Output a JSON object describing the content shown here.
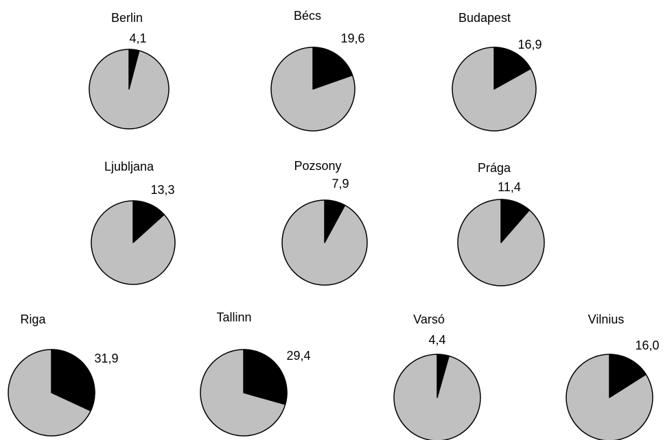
{
  "chart_data": [
    {
      "type": "pie",
      "title": "Berlin",
      "value_label": "4,1",
      "values": [
        4.1,
        95.9
      ],
      "colors": [
        "#000000",
        "#c0c0c0"
      ]
    },
    {
      "type": "pie",
      "title": "Bécs",
      "value_label": "19,6",
      "values": [
        19.6,
        80.4
      ],
      "colors": [
        "#000000",
        "#c0c0c0"
      ]
    },
    {
      "type": "pie",
      "title": "Budapest",
      "value_label": "16,9",
      "values": [
        16.9,
        83.1
      ],
      "colors": [
        "#000000",
        "#c0c0c0"
      ]
    },
    {
      "type": "pie",
      "title": "Ljubljana",
      "value_label": "13,3",
      "values": [
        13.3,
        86.7
      ],
      "colors": [
        "#000000",
        "#c0c0c0"
      ]
    },
    {
      "type": "pie",
      "title": "Pozsony",
      "value_label": "7,9",
      "values": [
        7.9,
        92.1
      ],
      "colors": [
        "#000000",
        "#c0c0c0"
      ]
    },
    {
      "type": "pie",
      "title": "Prága",
      "value_label": "11,4",
      "values": [
        11.4,
        88.6
      ],
      "colors": [
        "#000000",
        "#c0c0c0"
      ]
    },
    {
      "type": "pie",
      "title": "Riga",
      "value_label": "31,9",
      "values": [
        31.9,
        68.1
      ],
      "colors": [
        "#000000",
        "#c0c0c0"
      ]
    },
    {
      "type": "pie",
      "title": "Tallinn",
      "value_label": "29,4",
      "values": [
        29.4,
        70.6
      ],
      "colors": [
        "#000000",
        "#c0c0c0"
      ]
    },
    {
      "type": "pie",
      "title": "Varsó",
      "value_label": "4,4",
      "values": [
        4.4,
        95.6
      ],
      "colors": [
        "#000000",
        "#c0c0c0"
      ]
    },
    {
      "type": "pie",
      "title": "Vilnius",
      "value_label": "16,0",
      "values": [
        16.0,
        84.0
      ],
      "colors": [
        "#000000",
        "#c0c0c0"
      ]
    }
  ]
}
